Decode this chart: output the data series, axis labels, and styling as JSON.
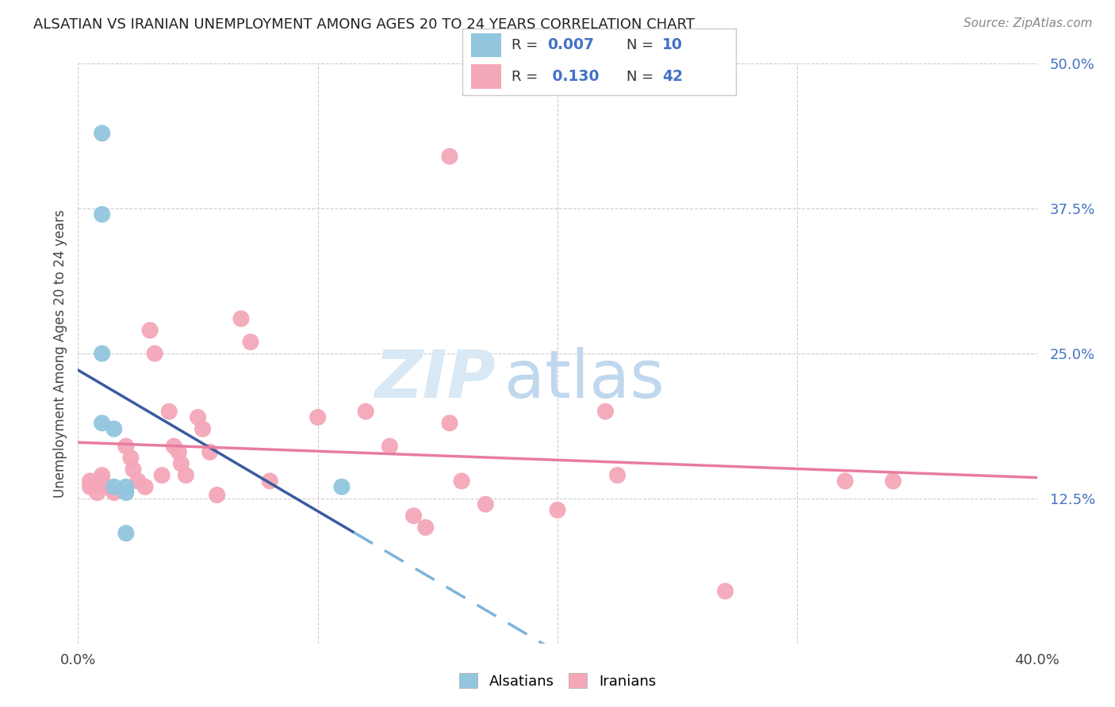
{
  "title": "ALSATIAN VS IRANIAN UNEMPLOYMENT AMONG AGES 20 TO 24 YEARS CORRELATION CHART",
  "source": "Source: ZipAtlas.com",
  "ylabel": "Unemployment Among Ages 20 to 24 years",
  "xmin": 0.0,
  "xmax": 0.4,
  "ymin": 0.0,
  "ymax": 0.5,
  "xticks": [
    0.0,
    0.1,
    0.2,
    0.3,
    0.4
  ],
  "yticks": [
    0.0,
    0.125,
    0.25,
    0.375,
    0.5
  ],
  "right_ytick_labels": [
    "",
    "12.5%",
    "25.0%",
    "37.5%",
    "50.0%"
  ],
  "alsatian_color": "#92C5DE",
  "iranian_color": "#F4A7B9",
  "alsatian_trend_solid_color": "#3A5BA0",
  "alsatian_trend_dash_color": "#7EB3D9",
  "iranian_trend_color": "#E87CA0",
  "alsatian_label": "Alsatians",
  "iranian_label": "Iranians",
  "r_color": "#4472C4",
  "watermark_zip_color": "#D8E8F4",
  "watermark_atlas_color": "#C0D8EE",
  "alsatian_x": [
    0.01,
    0.01,
    0.01,
    0.01,
    0.015,
    0.015,
    0.02,
    0.02,
    0.02,
    0.11
  ],
  "alsatian_y": [
    0.44,
    0.37,
    0.25,
    0.19,
    0.185,
    0.135,
    0.135,
    0.13,
    0.095,
    0.135
  ],
  "iranian_x": [
    0.005,
    0.005,
    0.008,
    0.01,
    0.01,
    0.012,
    0.015,
    0.02,
    0.022,
    0.023,
    0.025,
    0.028,
    0.03,
    0.032,
    0.035,
    0.038,
    0.04,
    0.042,
    0.043,
    0.045,
    0.05,
    0.052,
    0.055,
    0.058,
    0.068,
    0.072,
    0.08,
    0.1,
    0.12,
    0.13,
    0.14,
    0.145,
    0.155,
    0.155,
    0.16,
    0.17,
    0.2,
    0.22,
    0.225,
    0.27,
    0.32,
    0.34
  ],
  "iranian_y": [
    0.14,
    0.135,
    0.13,
    0.145,
    0.14,
    0.135,
    0.13,
    0.17,
    0.16,
    0.15,
    0.14,
    0.135,
    0.27,
    0.25,
    0.145,
    0.2,
    0.17,
    0.165,
    0.155,
    0.145,
    0.195,
    0.185,
    0.165,
    0.128,
    0.28,
    0.26,
    0.14,
    0.195,
    0.2,
    0.17,
    0.11,
    0.1,
    0.42,
    0.19,
    0.14,
    0.12,
    0.115,
    0.2,
    0.145,
    0.045,
    0.14,
    0.14
  ]
}
